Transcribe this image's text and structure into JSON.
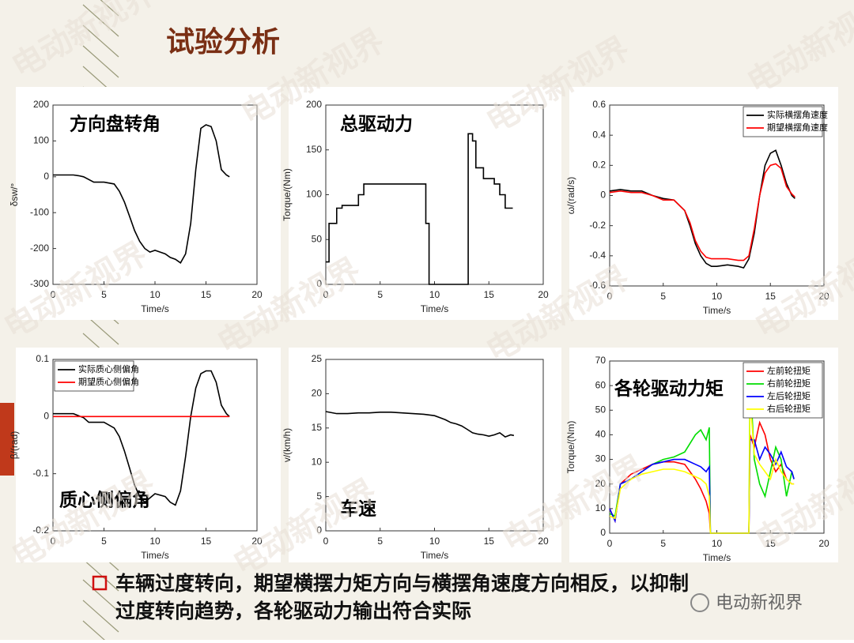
{
  "title": "试验分析",
  "watermark": "电动新视界",
  "logo_text": "电动新视界",
  "bullet_lines": [
    "车辆过度转向，期望横摆力矩方向与横摆角速度方向相反，以抑制",
    "过度转向趋势，各轮驱动力输出符合实际"
  ],
  "chart_data": [
    {
      "type": "line",
      "annotation": "方向盘转角",
      "xlabel": "Time/s",
      "ylabel": "δsw/°",
      "xlim": [
        0,
        20
      ],
      "xticks": [
        0,
        5,
        10,
        15,
        20
      ],
      "ylim": [
        -300,
        200
      ],
      "yticks": [
        -300,
        -200,
        -100,
        0,
        100,
        200
      ],
      "color": "#000000",
      "x": [
        0,
        1,
        2,
        2.5,
        3,
        4,
        5,
        6,
        6.5,
        7,
        7.5,
        8,
        8.5,
        9,
        9.5,
        10,
        10.5,
        11,
        11.5,
        12,
        12.5,
        13,
        13.5,
        14,
        14.5,
        15,
        15.5,
        16,
        16.5,
        17,
        17.3
      ],
      "values": [
        5,
        5,
        5,
        3,
        0,
        -15,
        -15,
        -20,
        -40,
        -70,
        -110,
        -150,
        -180,
        -200,
        -210,
        -205,
        -210,
        -215,
        -225,
        -230,
        -240,
        -215,
        -130,
        20,
        135,
        145,
        140,
        100,
        20,
        5,
        0
      ]
    },
    {
      "type": "line",
      "annotation": "总驱动力",
      "xlabel": "Time/s",
      "ylabel": "Torque/(Nm)",
      "xlim": [
        0,
        20
      ],
      "xticks": [
        0,
        5,
        10,
        15,
        20
      ],
      "ylim": [
        0,
        200
      ],
      "yticks": [
        0,
        50,
        100,
        150,
        200
      ],
      "color": "#000000",
      "x": [
        0,
        0.3,
        0.3,
        1,
        1,
        1.5,
        1.5,
        3,
        3,
        3.5,
        3.5,
        9.2,
        9.2,
        9.5,
        9.5,
        13.1,
        13.1,
        13.5,
        13.5,
        13.8,
        13.8,
        14.5,
        14.5,
        15.5,
        15.5,
        16,
        16,
        16.5,
        16.5,
        17.2
      ],
      "values": [
        25,
        25,
        68,
        68,
        85,
        85,
        88,
        88,
        100,
        100,
        112,
        112,
        68,
        68,
        0,
        0,
        168,
        168,
        160,
        160,
        130,
        130,
        118,
        118,
        112,
        112,
        100,
        100,
        85,
        85
      ]
    },
    {
      "type": "line",
      "xlabel": "Time/s",
      "ylabel": "ω/(rad/s)",
      "xlim": [
        0,
        20
      ],
      "xticks": [
        0,
        5,
        10,
        15,
        20
      ],
      "ylim": [
        -0.6,
        0.6
      ],
      "yticks": [
        -0.6,
        -0.4,
        -0.2,
        0,
        0.2,
        0.4,
        0.6
      ],
      "legend": "upper right",
      "x": [
        0,
        1,
        2,
        3,
        4,
        5,
        6,
        7,
        7.5,
        8,
        8.5,
        9,
        9.5,
        10,
        11,
        12,
        12.5,
        13,
        13.5,
        14,
        14.5,
        15,
        15.5,
        16,
        16.5,
        17,
        17.3
      ],
      "series": [
        {
          "name": "实际横摆角速度",
          "color": "#000000",
          "values": [
            0.03,
            0.04,
            0.03,
            0.03,
            0,
            -0.02,
            -0.03,
            -0.1,
            -0.2,
            -0.32,
            -0.4,
            -0.45,
            -0.47,
            -0.47,
            -0.46,
            -0.47,
            -0.48,
            -0.42,
            -0.25,
            0,
            0.2,
            0.28,
            0.3,
            0.2,
            0.08,
            0,
            -0.02
          ]
        },
        {
          "name": "期望横摆角速度",
          "color": "#ff0000",
          "values": [
            0.02,
            0.03,
            0.02,
            0.02,
            0,
            -0.03,
            -0.03,
            -0.1,
            -0.18,
            -0.3,
            -0.37,
            -0.41,
            -0.42,
            -0.42,
            -0.42,
            -0.43,
            -0.43,
            -0.4,
            -0.22,
            0,
            0.15,
            0.2,
            0.21,
            0.18,
            0.06,
            0.01,
            -0.01
          ]
        }
      ]
    },
    {
      "type": "line",
      "annotation": "质心侧偏角",
      "xlabel": "Time/s",
      "ylabel": "β/(rad)",
      "xlim": [
        0,
        20
      ],
      "xticks": [
        0,
        5,
        10,
        15,
        20
      ],
      "ylim": [
        -0.2,
        0.1
      ],
      "yticks": [
        -0.2,
        -0.1,
        0,
        0.1
      ],
      "legend": "upper left",
      "x": [
        0,
        1,
        2,
        3,
        3.5,
        4,
        5,
        6,
        6.5,
        7,
        7.5,
        8,
        8.5,
        9,
        10,
        11,
        11.5,
        12,
        12.5,
        13,
        13.5,
        14,
        14.5,
        15,
        15.5,
        16,
        16.5,
        17,
        17.3
      ],
      "series": [
        {
          "name": "实际质心侧偏角",
          "color": "#000000",
          "values": [
            0.005,
            0.005,
            0.005,
            -0.002,
            -0.01,
            -0.01,
            -0.01,
            -0.02,
            -0.035,
            -0.06,
            -0.09,
            -0.12,
            -0.14,
            -0.15,
            -0.135,
            -0.14,
            -0.15,
            -0.155,
            -0.13,
            -0.07,
            0,
            0.05,
            0.075,
            0.08,
            0.08,
            0.06,
            0.02,
            0.005,
            0
          ]
        },
        {
          "name": "期望质心侧偏角",
          "color": "#ff0000",
          "values": [
            0,
            0,
            0,
            0,
            0,
            0,
            0,
            0,
            0,
            0,
            0,
            0,
            0,
            0,
            0,
            0,
            0,
            0,
            0,
            0,
            0,
            0,
            0,
            0,
            0,
            0,
            0,
            0,
            0
          ]
        }
      ]
    },
    {
      "type": "line",
      "annotation": "车速",
      "xlabel": "Time/s",
      "ylabel": "v/(km/h)",
      "xlim": [
        0,
        20
      ],
      "xticks": [
        0,
        5,
        10,
        15,
        20
      ],
      "ylim": [
        0,
        25
      ],
      "yticks": [
        0,
        5,
        10,
        15,
        20,
        25
      ],
      "color": "#000000",
      "x": [
        0,
        1,
        2,
        3,
        4,
        5,
        6,
        7,
        8,
        9,
        10,
        10.5,
        11,
        11.5,
        12,
        12.5,
        13,
        13.5,
        14,
        14.5,
        15,
        15.5,
        16,
        16.5,
        17,
        17.3
      ],
      "values": [
        17.4,
        17.1,
        17.1,
        17.2,
        17.2,
        17.3,
        17.3,
        17.2,
        17.1,
        17,
        16.8,
        16.5,
        16.2,
        15.8,
        15.6,
        15.3,
        14.8,
        14.3,
        14.1,
        14,
        13.8,
        14,
        14.3,
        13.7,
        14,
        13.9
      ]
    },
    {
      "type": "line",
      "annotation": "各轮驱动力矩",
      "xlabel": "Time/s",
      "ylabel": "Torque/(Nm)",
      "xlim": [
        0,
        20
      ],
      "xticks": [
        0,
        5,
        10,
        15,
        20
      ],
      "ylim": [
        0,
        70
      ],
      "yticks": [
        0,
        10,
        20,
        30,
        40,
        50,
        60,
        70
      ],
      "legend": "upper right",
      "x": [
        0,
        0.5,
        1,
        2,
        3,
        4,
        5,
        6,
        7,
        8,
        8.5,
        9,
        9.3,
        9.4,
        13,
        13.1,
        13.5,
        14,
        14.5,
        15,
        15.5,
        16,
        16.5,
        17,
        17.2
      ],
      "series": [
        {
          "name": "左前轮扭矩",
          "color": "#ff0000",
          "values": [
            10,
            5,
            20,
            24,
            26,
            28,
            29,
            29,
            28,
            22,
            18,
            13,
            8,
            0,
            0,
            40,
            35,
            45,
            40,
            30,
            25,
            28,
            22,
            20,
            20
          ]
        },
        {
          "name": "右前轮扭矩",
          "color": "#00dd00",
          "values": [
            8,
            7,
            20,
            22,
            25,
            28,
            30,
            31,
            33,
            40,
            42,
            38,
            43,
            0,
            0,
            65,
            30,
            20,
            15,
            25,
            35,
            30,
            15,
            25,
            22
          ]
        },
        {
          "name": "左后轮扭矩",
          "color": "#0000ff",
          "values": [
            10,
            5,
            20,
            22,
            25,
            28,
            29,
            30,
            30,
            28,
            27,
            25,
            27,
            0,
            0,
            38,
            38,
            30,
            35,
            32,
            28,
            33,
            27,
            25,
            22
          ]
        },
        {
          "name": "右后轮扭矩",
          "color": "#ffff00",
          "values": [
            7,
            6,
            18,
            22,
            24,
            25,
            26,
            26,
            25,
            23,
            22,
            20,
            15,
            0,
            0,
            55,
            32,
            28,
            25,
            22,
            30,
            25,
            22,
            20,
            20
          ]
        }
      ]
    }
  ]
}
